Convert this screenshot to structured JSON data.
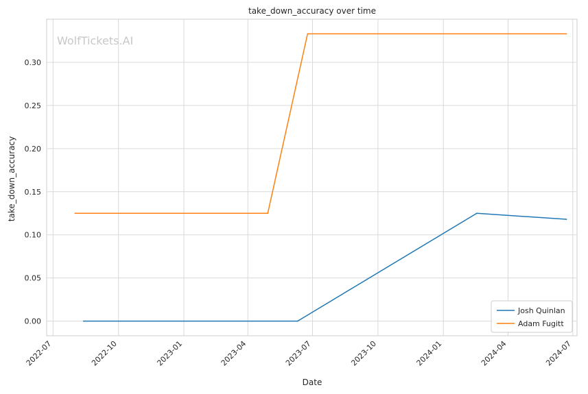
{
  "chart_data": {
    "type": "line",
    "title": "take_down_accuracy over time",
    "xlabel": "Date",
    "ylabel": "take_down_accuracy",
    "watermark": "WolfTickets.AI",
    "grid": true,
    "legend_position": "bottom-right",
    "xlim": [
      "2022-06-22",
      "2024-07-07"
    ],
    "ylim": [
      -0.017,
      0.35
    ],
    "x_ticks": [
      "2022-07",
      "2022-10",
      "2023-01",
      "2023-04",
      "2023-07",
      "2023-10",
      "2024-01",
      "2024-04",
      "2024-07"
    ],
    "y_ticks": [
      "0.00",
      "0.05",
      "0.10",
      "0.15",
      "0.20",
      "0.25",
      "0.30"
    ],
    "series": [
      {
        "name": "Josh Quinlan",
        "color": "#1f77b4",
        "points": [
          {
            "x": "2022-08-13",
            "y": 0.0
          },
          {
            "x": "2023-06-10",
            "y": 0.0
          },
          {
            "x": "2024-02-17",
            "y": 0.125
          },
          {
            "x": "2024-06-22",
            "y": 0.118
          }
        ]
      },
      {
        "name": "Adam Fugitt",
        "color": "#ff7f0e",
        "points": [
          {
            "x": "2022-08-01",
            "y": 0.125
          },
          {
            "x": "2023-04-29",
            "y": 0.125
          },
          {
            "x": "2023-06-24",
            "y": 0.333
          },
          {
            "x": "2024-06-22",
            "y": 0.333
          }
        ]
      }
    ]
  }
}
